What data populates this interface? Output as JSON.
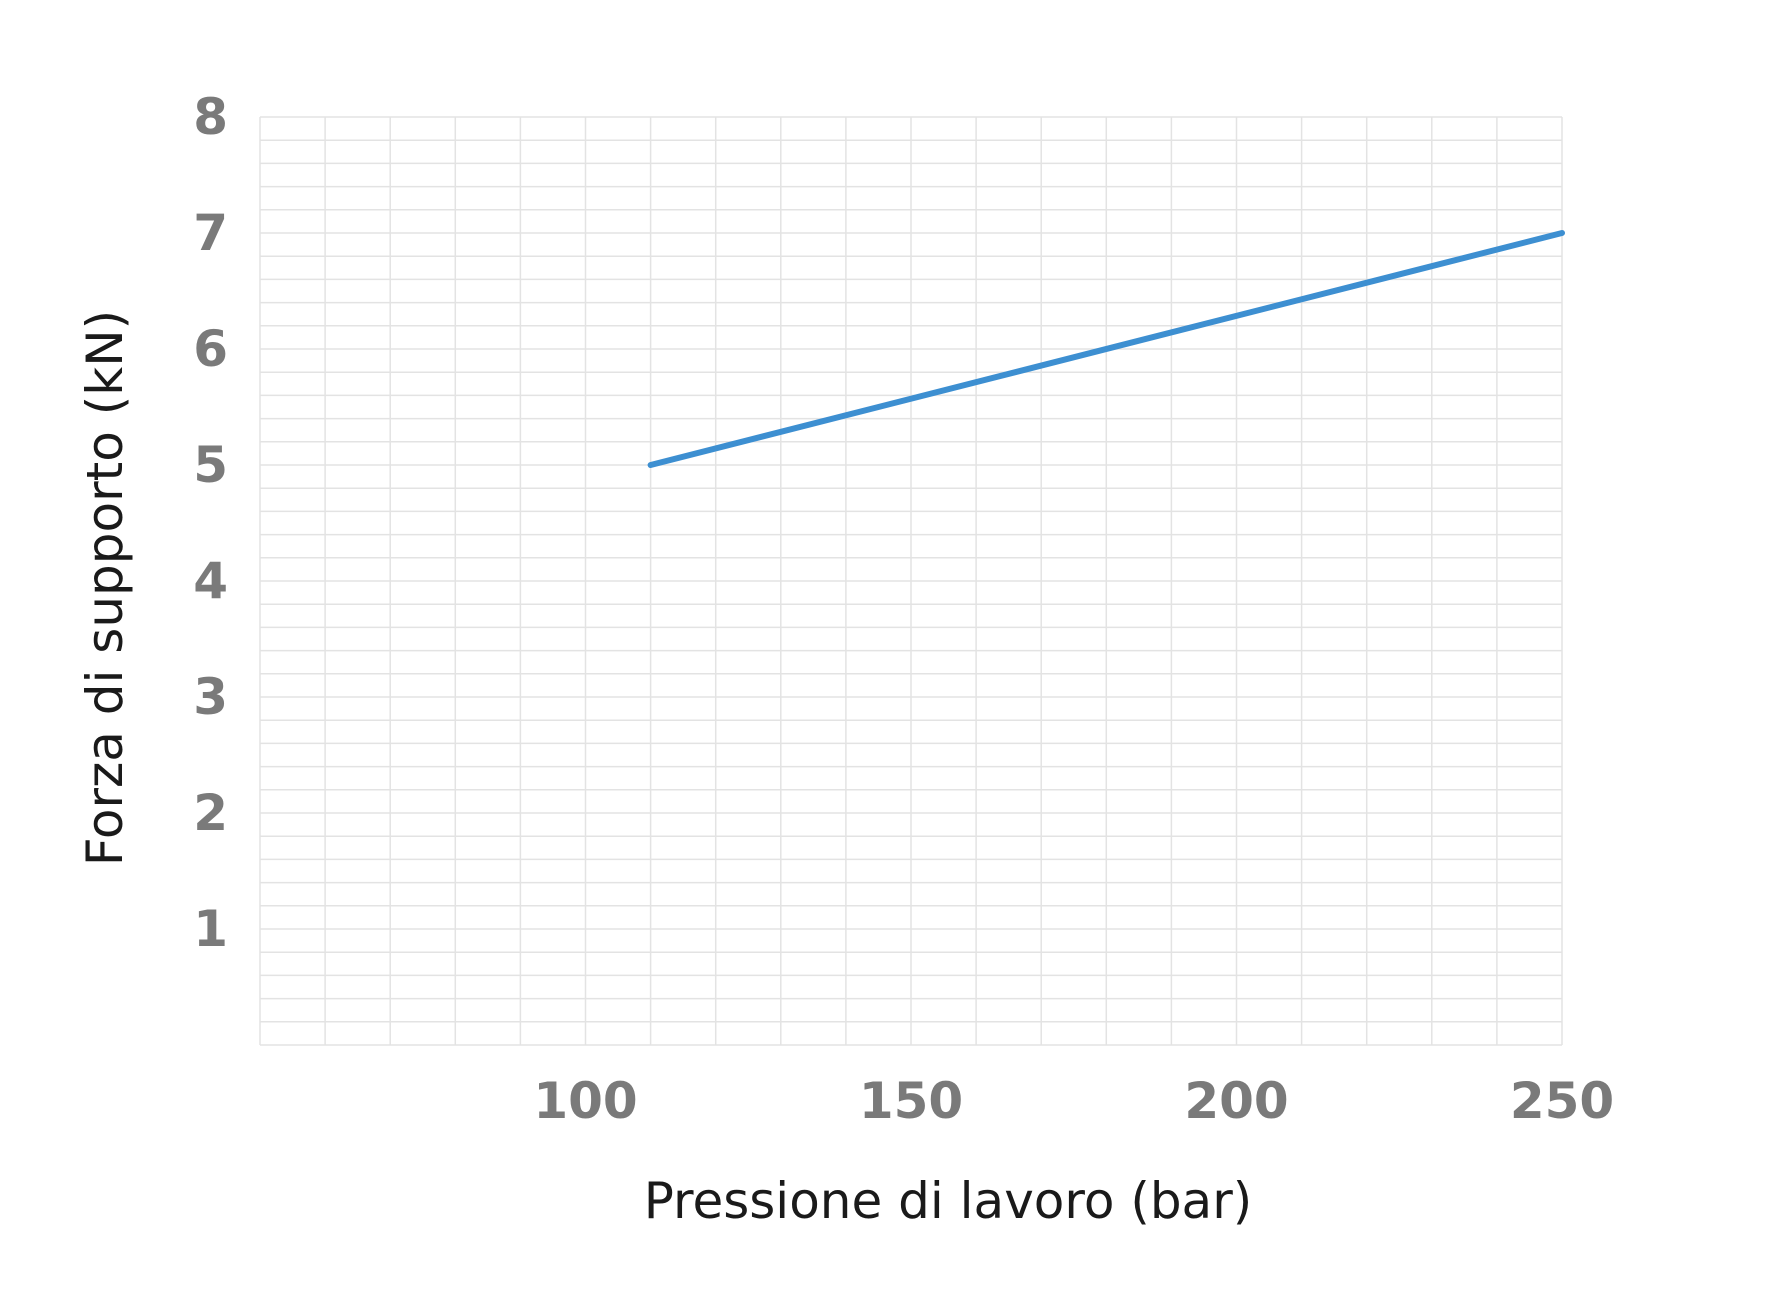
{
  "chart_data": {
    "type": "line",
    "xlabel": "Pressione di lavoro (bar)",
    "ylabel": "Forza di supporto (kN)",
    "xlim": [
      50,
      250
    ],
    "ylim": [
      0,
      8
    ],
    "x_ticks": [
      100,
      150,
      200,
      250
    ],
    "y_ticks": [
      1,
      2,
      3,
      4,
      5,
      6,
      7,
      8
    ],
    "x_tick_labels": [
      "100",
      "150",
      "200",
      "250"
    ],
    "y_tick_labels": [
      "1",
      "2",
      "3",
      "4",
      "5",
      "6",
      "7",
      "8"
    ],
    "grid": true,
    "x_minor_step": 10,
    "y_minor_step": 0.2,
    "series": [
      {
        "x": [
          110,
          250
        ],
        "y": [
          5,
          7
        ],
        "color": "#3d8fd1"
      }
    ],
    "colors": {
      "grid": "#e3e3e3",
      "tick_text": "#7a7a7a",
      "axis_title": "#1a1a1a",
      "line": "#3d8fd1"
    }
  }
}
